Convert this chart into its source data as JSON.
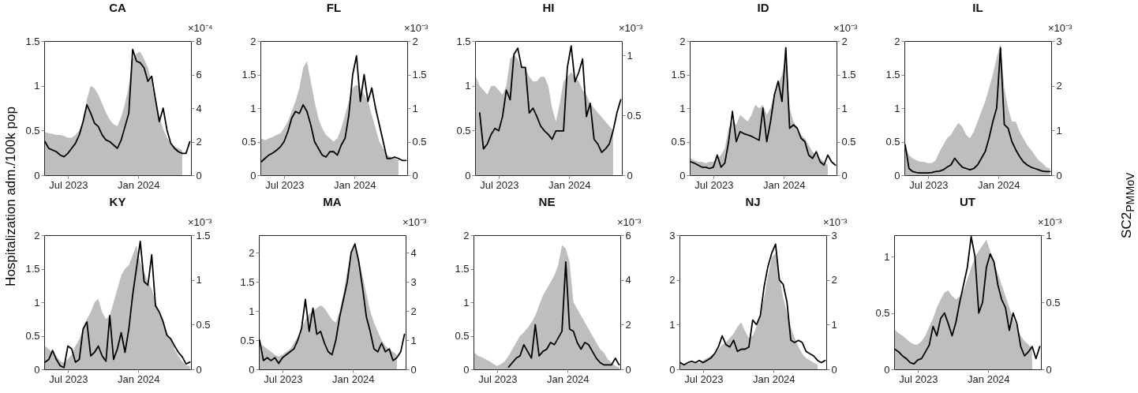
{
  "chart_data": [
    {
      "type": "area",
      "title": "CA",
      "x": [
        "2023-05-01",
        "2023-05-11",
        "2023-05-21",
        "2023-05-31",
        "2023-06-10",
        "2023-06-20",
        "2023-06-30",
        "2023-07-10",
        "2023-07-20",
        "2023-07-30",
        "2023-08-09",
        "2023-08-19",
        "2023-08-29",
        "2023-09-08",
        "2023-09-18",
        "2023-09-28",
        "2023-10-08",
        "2023-10-18",
        "2023-10-28",
        "2023-11-07",
        "2023-11-17",
        "2023-11-27",
        "2023-12-07",
        "2023-12-17",
        "2023-12-27",
        "2024-01-06",
        "2024-01-16",
        "2024-01-26",
        "2024-02-05",
        "2024-02-15",
        "2024-02-25",
        "2024-03-06",
        "2024-03-16",
        "2024-03-26",
        "2024-04-05",
        "2024-04-15",
        "2024-04-25",
        "2024-05-05",
        "2024-05-15"
      ],
      "xlim": [
        "2023-04-29",
        "2024-05-18"
      ],
      "xticks": [
        {
          "value": "2023-07-01",
          "label": "Jul 2023"
        },
        {
          "value": "2024-01-01",
          "label": "Jan 2024"
        }
      ],
      "ylim": [
        0,
        1.5
      ],
      "yticks": [
        0,
        0.5,
        1,
        1.5
      ],
      "y2lim": [
        0,
        8
      ],
      "y2ticks": [
        0,
        2,
        4,
        6,
        8
      ],
      "annotations": [
        "×10⁻⁴"
      ],
      "series": [
        {
          "color": "#bebebe",
          "values": [
            0.48,
            0.47,
            0.46,
            0.45,
            0.45,
            0.44,
            0.42,
            0.42,
            0.45,
            0.5,
            0.6,
            0.85,
            1.0,
            0.97,
            0.9,
            0.8,
            0.7,
            0.62,
            0.57,
            0.55,
            0.65,
            0.8,
            1.0,
            1.3,
            1.36,
            1.38,
            1.3,
            1.2,
            1.05,
            0.8,
            0.65,
            0.52,
            0.42,
            0.36,
            0.32,
            0.3,
            0.28,
            null,
            null
          ]
        },
        {
          "type": "line",
          "axis": "y2",
          "color": "#000000",
          "values": [
            2.0,
            1.6,
            1.5,
            1.4,
            1.2,
            1.1,
            1.3,
            1.6,
            1.9,
            2.4,
            3.2,
            4.2,
            3.7,
            3.1,
            2.9,
            2.4,
            2.1,
            2.0,
            1.8,
            1.6,
            2.1,
            2.9,
            3.7,
            7.5,
            6.8,
            6.7,
            6.4,
            5.6,
            5.9,
            4.5,
            3.2,
            4.0,
            2.7,
            1.9,
            1.6,
            1.4,
            1.3,
            1.3,
            2.0
          ]
        }
      ]
    },
    {
      "type": "area",
      "title": "FL",
      "x": [
        "2023-05-01",
        "2023-05-11",
        "2023-05-21",
        "2023-05-31",
        "2023-06-10",
        "2023-06-20",
        "2023-06-30",
        "2023-07-10",
        "2023-07-20",
        "2023-07-30",
        "2023-08-09",
        "2023-08-19",
        "2023-08-29",
        "2023-09-08",
        "2023-09-18",
        "2023-09-28",
        "2023-10-08",
        "2023-10-18",
        "2023-10-28",
        "2023-11-07",
        "2023-11-17",
        "2023-11-27",
        "2023-12-07",
        "2023-12-17",
        "2023-12-27",
        "2024-01-06",
        "2024-01-16",
        "2024-01-26",
        "2024-02-05",
        "2024-02-15",
        "2024-02-25",
        "2024-03-06",
        "2024-03-16",
        "2024-03-26",
        "2024-04-05",
        "2024-04-15",
        "2024-04-25",
        "2024-05-05",
        "2024-05-15"
      ],
      "xlim": [
        "2023-04-29",
        "2024-05-18"
      ],
      "xticks": [
        {
          "value": "2023-07-01",
          "label": "Jul 2023"
        },
        {
          "value": "2024-01-01",
          "label": "Jan 2024"
        }
      ],
      "ylim": [
        0,
        2
      ],
      "yticks": [
        0,
        0.5,
        1,
        1.5,
        2
      ],
      "y2lim": [
        0,
        2
      ],
      "y2ticks": [
        0,
        0.5,
        1,
        1.5,
        2
      ],
      "annotations": [
        "×10⁻³"
      ],
      "series": [
        {
          "color": "#bebebe",
          "values": [
            0.55,
            0.52,
            0.55,
            0.57,
            0.6,
            0.62,
            0.7,
            0.8,
            0.95,
            1.1,
            1.3,
            1.6,
            1.7,
            1.4,
            1.1,
            0.85,
            0.7,
            0.6,
            0.55,
            0.5,
            0.55,
            0.7,
            0.9,
            1.1,
            1.3,
            1.35,
            1.3,
            1.2,
            1.1,
            0.9,
            0.7,
            0.5,
            0.4,
            0.3,
            0.27,
            0.25,
            0.22,
            null,
            null
          ]
        },
        {
          "type": "line",
          "axis": "y2",
          "color": "#000000",
          "values": [
            0.2,
            0.25,
            0.3,
            0.33,
            0.37,
            0.42,
            0.5,
            0.65,
            0.85,
            0.95,
            0.92,
            1.05,
            0.95,
            0.75,
            0.5,
            0.4,
            0.3,
            0.27,
            0.35,
            0.35,
            0.3,
            0.45,
            0.55,
            0.9,
            1.5,
            1.78,
            1.1,
            1.5,
            1.1,
            1.3,
            1.0,
            0.75,
            0.5,
            0.25,
            0.25,
            0.27,
            0.25,
            0.22,
            0.22
          ]
        }
      ]
    },
    {
      "type": "area",
      "title": "HI",
      "x": [
        "2023-05-01",
        "2023-05-11",
        "2023-05-21",
        "2023-05-31",
        "2023-06-10",
        "2023-06-20",
        "2023-06-30",
        "2023-07-10",
        "2023-07-20",
        "2023-07-30",
        "2023-08-09",
        "2023-08-19",
        "2023-08-29",
        "2023-09-08",
        "2023-09-18",
        "2023-09-28",
        "2023-10-08",
        "2023-10-18",
        "2023-10-28",
        "2023-11-07",
        "2023-11-17",
        "2023-11-27",
        "2023-12-07",
        "2023-12-17",
        "2023-12-27",
        "2024-01-06",
        "2024-01-16",
        "2024-01-26",
        "2024-02-05",
        "2024-02-15",
        "2024-02-25",
        "2024-03-06",
        "2024-03-16",
        "2024-03-26",
        "2024-04-05",
        "2024-04-15",
        "2024-04-25",
        "2024-05-05",
        "2024-05-15"
      ],
      "xlim": [
        "2023-04-29",
        "2024-05-18"
      ],
      "xticks": [
        {
          "value": "2023-07-01",
          "label": "Jul 2023"
        },
        {
          "value": "2024-01-01",
          "label": "Jan 2024"
        }
      ],
      "ylim": [
        0,
        1.5
      ],
      "yticks": [
        0,
        0.5,
        1,
        1.5
      ],
      "y2lim": [
        0,
        1.12
      ],
      "y2ticks": [
        0,
        0.5,
        1
      ],
      "annotations": [
        "×10⁻³"
      ],
      "series": [
        {
          "color": "#bebebe",
          "values": [
            1.1,
            1.0,
            0.95,
            0.9,
            1.0,
            1.0,
            0.95,
            0.9,
            1.0,
            1.3,
            1.35,
            1.3,
            1.2,
            1.2,
            1.1,
            1.05,
            1.05,
            1.1,
            1.1,
            1.0,
            0.75,
            0.6,
            0.8,
            1.05,
            1.1,
            1.15,
            1.1,
            1.05,
            0.95,
            0.9,
            0.8,
            0.75,
            0.7,
            0.65,
            0.6,
            0.55,
            0.5,
            null,
            null
          ]
        },
        {
          "type": "line",
          "axis": "y2",
          "color": "#000000",
          "values": [
            null,
            0.52,
            0.22,
            0.26,
            0.34,
            0.39,
            0.37,
            0.49,
            0.71,
            0.63,
            1.01,
            1.06,
            0.9,
            0.9,
            0.52,
            0.56,
            0.49,
            0.41,
            0.37,
            0.34,
            0.3,
            0.37,
            0.37,
            0.37,
            0.9,
            1.08,
            0.78,
            0.86,
            0.97,
            0.49,
            0.6,
            0.3,
            0.26,
            0.19,
            0.22,
            0.26,
            0.37,
            0.52,
            0.63
          ]
        }
      ]
    },
    {
      "type": "area",
      "title": "ID",
      "x": [
        "2023-05-01",
        "2023-05-11",
        "2023-05-21",
        "2023-05-31",
        "2023-06-10",
        "2023-06-20",
        "2023-06-30",
        "2023-07-10",
        "2023-07-20",
        "2023-07-30",
        "2023-08-09",
        "2023-08-19",
        "2023-08-29",
        "2023-09-08",
        "2023-09-18",
        "2023-09-28",
        "2023-10-08",
        "2023-10-18",
        "2023-10-28",
        "2023-11-07",
        "2023-11-17",
        "2023-11-27",
        "2023-12-07",
        "2023-12-17",
        "2023-12-27",
        "2024-01-06",
        "2024-01-16",
        "2024-01-26",
        "2024-02-05",
        "2024-02-15",
        "2024-02-25",
        "2024-03-06",
        "2024-03-16",
        "2024-03-26",
        "2024-04-05",
        "2024-04-15",
        "2024-04-25",
        "2024-05-05",
        "2024-05-15"
      ],
      "xlim": [
        "2023-04-29",
        "2024-05-18"
      ],
      "xticks": [
        {
          "value": "2023-07-01",
          "label": "Jul 2023"
        },
        {
          "value": "2024-01-01",
          "label": "Jan 2024"
        }
      ],
      "ylim": [
        0,
        2
      ],
      "yticks": [
        0,
        0.5,
        1,
        1.5,
        2
      ],
      "y2lim": [
        0,
        2
      ],
      "y2ticks": [
        0,
        0.5,
        1,
        1.5,
        2
      ],
      "annotations": [
        "×10⁻³"
      ],
      "series": [
        {
          "color": "#bebebe",
          "values": [
            0.25,
            0.22,
            0.2,
            0.2,
            0.18,
            0.2,
            0.2,
            0.25,
            0.3,
            0.4,
            0.7,
            0.8,
            0.75,
            0.9,
            0.85,
            0.8,
            0.9,
            1.05,
            1.0,
            1.05,
            0.9,
            1.0,
            1.2,
            1.35,
            1.5,
            1.75,
            1.0,
            0.8,
            0.7,
            0.6,
            0.55,
            0.45,
            0.35,
            0.3,
            0.25,
            0.2,
            0.15,
            null,
            null
          ]
        },
        {
          "type": "line",
          "axis": "y2",
          "color": "#000000",
          "values": [
            0.2,
            0.18,
            0.15,
            0.12,
            0.12,
            0.1,
            0.12,
            0.3,
            0.12,
            0.18,
            0.5,
            0.95,
            0.5,
            0.65,
            0.62,
            0.6,
            0.58,
            0.55,
            0.52,
            1.0,
            0.5,
            0.8,
            1.2,
            1.4,
            1.1,
            1.9,
            0.7,
            0.75,
            0.7,
            0.55,
            0.5,
            0.3,
            0.25,
            0.35,
            0.2,
            0.15,
            0.3,
            0.2,
            0.15
          ]
        }
      ]
    },
    {
      "type": "area",
      "title": "IL",
      "x": [
        "2023-05-01",
        "2023-05-11",
        "2023-05-21",
        "2023-05-31",
        "2023-06-10",
        "2023-06-20",
        "2023-06-30",
        "2023-07-10",
        "2023-07-20",
        "2023-07-30",
        "2023-08-09",
        "2023-08-19",
        "2023-08-29",
        "2023-09-08",
        "2023-09-18",
        "2023-09-28",
        "2023-10-08",
        "2023-10-18",
        "2023-10-28",
        "2023-11-07",
        "2023-11-17",
        "2023-11-27",
        "2023-12-07",
        "2023-12-17",
        "2023-12-27",
        "2024-01-06",
        "2024-01-16",
        "2024-01-26",
        "2024-02-05",
        "2024-02-15",
        "2024-02-25",
        "2024-03-06",
        "2024-03-16",
        "2024-03-26",
        "2024-04-05",
        "2024-04-15",
        "2024-04-25",
        "2024-05-05",
        "2024-05-15"
      ],
      "xlim": [
        "2023-04-29",
        "2024-05-18"
      ],
      "xticks": [
        {
          "value": "2023-07-01",
          "label": "Jul 2023"
        },
        {
          "value": "2024-01-01",
          "label": "Jan 2024"
        }
      ],
      "ylim": [
        0,
        2
      ],
      "yticks": [
        0,
        0.5,
        1,
        1.5,
        2
      ],
      "y2lim": [
        0,
        3
      ],
      "y2ticks": [
        0,
        1,
        2,
        3
      ],
      "annotations": [
        "×10⁻³"
      ],
      "series": [
        {
          "color": "#bebebe",
          "values": [
            0.45,
            0.3,
            0.25,
            0.22,
            0.2,
            0.2,
            0.18,
            0.18,
            0.22,
            0.35,
            0.45,
            0.55,
            0.6,
            0.7,
            0.78,
            0.72,
            0.6,
            0.55,
            0.65,
            0.8,
            0.95,
            1.1,
            1.3,
            1.5,
            1.75,
            1.95,
            1.3,
            1.0,
            0.8,
            0.8,
            0.65,
            0.55,
            0.45,
            0.38,
            0.3,
            0.22,
            0.18,
            0.12,
            0.1
          ]
        },
        {
          "type": "line",
          "axis": "y2",
          "color": "#000000",
          "values": [
            0.68,
            0.15,
            0.08,
            0.06,
            0.05,
            0.05,
            0.05,
            0.06,
            0.08,
            0.09,
            0.12,
            0.18,
            0.23,
            0.38,
            0.27,
            0.18,
            0.15,
            0.12,
            0.15,
            0.23,
            0.38,
            0.53,
            0.83,
            1.2,
            1.5,
            2.85,
            1.13,
            1.05,
            0.75,
            0.57,
            0.42,
            0.3,
            0.23,
            0.18,
            0.15,
            0.12,
            0.09,
            0.08,
            0.08
          ]
        }
      ]
    },
    {
      "type": "area",
      "title": "KY",
      "ylabel": "Hospitalization adm./100k pop",
      "x": [
        "2023-05-01",
        "2023-05-11",
        "2023-05-21",
        "2023-05-31",
        "2023-06-10",
        "2023-06-20",
        "2023-06-30",
        "2023-07-10",
        "2023-07-20",
        "2023-07-30",
        "2023-08-09",
        "2023-08-19",
        "2023-08-29",
        "2023-09-08",
        "2023-09-18",
        "2023-09-28",
        "2023-10-08",
        "2023-10-18",
        "2023-10-28",
        "2023-11-07",
        "2023-11-17",
        "2023-11-27",
        "2023-12-07",
        "2023-12-17",
        "2023-12-27",
        "2024-01-06",
        "2024-01-16",
        "2024-01-26",
        "2024-02-05",
        "2024-02-15",
        "2024-02-25",
        "2024-03-06",
        "2024-03-16",
        "2024-03-26",
        "2024-04-05",
        "2024-04-15",
        "2024-04-25",
        "2024-05-05",
        "2024-05-15"
      ],
      "xlim": [
        "2023-04-29",
        "2024-05-18"
      ],
      "xticks": [
        {
          "value": "2023-07-01",
          "label": "Jul 2023"
        },
        {
          "value": "2024-01-01",
          "label": "Jan 2024"
        }
      ],
      "ylim": [
        0,
        2
      ],
      "yticks": [
        0,
        0.5,
        1,
        1.5,
        2
      ],
      "y2lim": [
        0,
        1.5
      ],
      "y2ticks": [
        0,
        0.5,
        1,
        1.5
      ],
      "annotations": [
        "×10⁻³"
      ],
      "series": [
        {
          "color": "#bebebe",
          "values": [
            0.35,
            0.3,
            0.25,
            0.2,
            0.12,
            0.1,
            0.15,
            0.22,
            0.35,
            0.45,
            0.6,
            0.75,
            0.85,
            1.0,
            1.05,
            0.85,
            0.75,
            0.8,
            1.0,
            1.2,
            1.4,
            1.5,
            1.55,
            1.7,
            1.85,
            1.6,
            1.45,
            1.3,
            1.2,
            1.0,
            0.85,
            0.7,
            0.55,
            0.45,
            0.3,
            0.2,
            0.12,
            0.06,
            0.05
          ]
        },
        {
          "type": "line",
          "axis": "y2",
          "color": "#000000",
          "values": [
            0.08,
            0.11,
            0.21,
            0.11,
            0.04,
            0.02,
            0.26,
            0.23,
            0.08,
            0.11,
            0.45,
            0.53,
            0.15,
            0.19,
            0.26,
            0.15,
            0.09,
            0.6,
            0.11,
            0.23,
            0.41,
            0.19,
            0.45,
            0.83,
            1.13,
            1.43,
            0.98,
            0.94,
            1.28,
            0.71,
            0.64,
            0.53,
            0.38,
            0.34,
            0.26,
            0.19,
            0.14,
            0.06,
            0.08
          ]
        }
      ]
    },
    {
      "type": "area",
      "title": "MA",
      "x": [
        "2023-05-01",
        "2023-05-11",
        "2023-05-21",
        "2023-05-31",
        "2023-06-10",
        "2023-06-20",
        "2023-06-30",
        "2023-07-10",
        "2023-07-20",
        "2023-07-30",
        "2023-08-09",
        "2023-08-19",
        "2023-08-29",
        "2023-09-08",
        "2023-09-18",
        "2023-09-28",
        "2023-10-08",
        "2023-10-18",
        "2023-10-28",
        "2023-11-07",
        "2023-11-17",
        "2023-11-27",
        "2023-12-07",
        "2023-12-17",
        "2023-12-27",
        "2024-01-06",
        "2024-01-16",
        "2024-01-26",
        "2024-02-05",
        "2024-02-15",
        "2024-02-25",
        "2024-03-06",
        "2024-03-16",
        "2024-03-26",
        "2024-04-05",
        "2024-04-15",
        "2024-04-25",
        "2024-05-05",
        "2024-05-15"
      ],
      "xlim": [
        "2023-04-29",
        "2024-05-18"
      ],
      "xticks": [
        {
          "value": "2023-07-01",
          "label": "Jul 2023"
        },
        {
          "value": "2024-01-01",
          "label": "Jan 2024"
        }
      ],
      "ylim": [
        0,
        2.3
      ],
      "yticks": [
        0,
        0.5,
        1,
        1.5,
        2
      ],
      "y2lim": [
        0,
        4.6
      ],
      "y2ticks": [
        0,
        1,
        2,
        3,
        4
      ],
      "annotations": [
        "×10⁻³"
      ],
      "series": [
        {
          "color": "#bebebe",
          "values": [
            0.45,
            0.4,
            0.35,
            0.3,
            0.25,
            0.22,
            0.25,
            0.3,
            0.35,
            0.45,
            0.55,
            0.7,
            0.85,
            0.95,
            1.0,
            1.05,
            1.1,
            1.05,
            0.95,
            0.85,
            0.8,
            1.0,
            1.3,
            1.7,
            2.0,
            2.1,
            1.9,
            1.6,
            1.3,
            1.0,
            0.8,
            0.65,
            0.5,
            0.4,
            0.35,
            0.3,
            0.25,
            null,
            null
          ]
        },
        {
          "type": "line",
          "axis": "y2",
          "color": "#000000",
          "values": [
            1.0,
            0.3,
            0.4,
            0.3,
            0.4,
            0.2,
            0.4,
            0.5,
            0.6,
            0.7,
            1.0,
            1.4,
            2.4,
            1.3,
            2.1,
            1.2,
            1.3,
            0.9,
            0.6,
            0.5,
            1.0,
            1.8,
            2.4,
            3.0,
            4.0,
            4.3,
            3.7,
            2.8,
            1.8,
            1.3,
            0.7,
            0.6,
            0.9,
            0.6,
            0.7,
            0.3,
            0.4,
            0.6,
            1.2
          ]
        }
      ]
    },
    {
      "type": "area",
      "title": "NE",
      "x": [
        "2023-05-01",
        "2023-05-11",
        "2023-05-21",
        "2023-05-31",
        "2023-06-10",
        "2023-06-20",
        "2023-06-30",
        "2023-07-10",
        "2023-07-20",
        "2023-07-30",
        "2023-08-09",
        "2023-08-19",
        "2023-08-29",
        "2023-09-08",
        "2023-09-18",
        "2023-09-28",
        "2023-10-08",
        "2023-10-18",
        "2023-10-28",
        "2023-11-07",
        "2023-11-17",
        "2023-11-27",
        "2023-12-07",
        "2023-12-17",
        "2023-12-27",
        "2024-01-06",
        "2024-01-16",
        "2024-01-26",
        "2024-02-05",
        "2024-02-15",
        "2024-02-25",
        "2024-03-06",
        "2024-03-16",
        "2024-03-26",
        "2024-04-05",
        "2024-04-15",
        "2024-04-25",
        "2024-05-05",
        "2024-05-15"
      ],
      "xlim": [
        "2023-04-29",
        "2024-05-18"
      ],
      "xticks": [
        {
          "value": "2023-07-01",
          "label": "Jul 2023"
        },
        {
          "value": "2024-01-01",
          "label": "Jan 2024"
        }
      ],
      "ylim": [
        0,
        2
      ],
      "yticks": [
        0,
        0.5,
        1,
        1.5,
        2
      ],
      "y2lim": [
        0,
        6
      ],
      "y2ticks": [
        0,
        2,
        4,
        6
      ],
      "annotations": [
        "×10⁻³"
      ],
      "series": [
        {
          "color": "#bebebe",
          "values": [
            0.25,
            0.2,
            0.18,
            0.15,
            0.12,
            0.08,
            0.05,
            0.08,
            0.12,
            0.2,
            0.3,
            0.4,
            0.5,
            0.55,
            0.62,
            0.7,
            0.8,
            0.95,
            1.1,
            1.2,
            1.3,
            1.4,
            1.55,
            1.85,
            1.8,
            1.6,
            1.0,
            0.9,
            0.8,
            0.7,
            0.6,
            0.5,
            0.4,
            0.3,
            0.25,
            0.15,
            0.1,
            0.05,
            0.03
          ]
        },
        {
          "type": "line",
          "axis": "y2",
          "color": "#000000",
          "values": [
            null,
            null,
            null,
            null,
            null,
            null,
            null,
            null,
            null,
            0.1,
            0.3,
            0.5,
            0.6,
            1.1,
            0.8,
            0.5,
            2.0,
            0.6,
            0.8,
            0.9,
            1.2,
            1.1,
            1.4,
            1.7,
            4.8,
            1.8,
            1.7,
            1.2,
            0.9,
            1.2,
            1.1,
            0.8,
            0.5,
            0.3,
            0.2,
            0.2,
            0.2,
            0.5,
            0.2
          ]
        }
      ]
    },
    {
      "type": "area",
      "title": "NJ",
      "x": [
        "2023-05-01",
        "2023-05-11",
        "2023-05-21",
        "2023-05-31",
        "2023-06-10",
        "2023-06-20",
        "2023-06-30",
        "2023-07-10",
        "2023-07-20",
        "2023-07-30",
        "2023-08-09",
        "2023-08-19",
        "2023-08-29",
        "2023-09-08",
        "2023-09-18",
        "2023-09-28",
        "2023-10-08",
        "2023-10-18",
        "2023-10-28",
        "2023-11-07",
        "2023-11-17",
        "2023-11-27",
        "2023-12-07",
        "2023-12-17",
        "2023-12-27",
        "2024-01-06",
        "2024-01-16",
        "2024-01-26",
        "2024-02-05",
        "2024-02-15",
        "2024-02-25",
        "2024-03-06",
        "2024-03-16",
        "2024-03-26",
        "2024-04-05",
        "2024-04-15",
        "2024-04-25",
        "2024-05-05",
        "2024-05-15"
      ],
      "xlim": [
        "2023-04-29",
        "2024-05-18"
      ],
      "xticks": [
        {
          "value": "2023-07-01",
          "label": "Jul 2023"
        },
        {
          "value": "2024-01-01",
          "label": "Jan 2024"
        }
      ],
      "ylim": [
        0,
        3
      ],
      "yticks": [
        0,
        1,
        2,
        3
      ],
      "y2lim": [
        0,
        3
      ],
      "y2ticks": [
        0,
        1,
        2,
        3
      ],
      "annotations": [
        "×10⁻³"
      ],
      "series": [
        {
          "color": "#bebebe",
          "values": [
            0.15,
            0.12,
            0.12,
            0.15,
            0.15,
            0.15,
            0.2,
            0.25,
            0.3,
            0.35,
            0.45,
            0.55,
            0.6,
            0.7,
            0.8,
            0.95,
            1.05,
            0.85,
            0.7,
            0.75,
            0.95,
            1.2,
            1.6,
            2.1,
            2.5,
            2.6,
            2.1,
            1.6,
            1.25,
            0.95,
            0.7,
            0.5,
            0.35,
            0.25,
            0.2,
            0.15,
            0.1,
            null,
            null
          ]
        },
        {
          "type": "line",
          "axis": "y2",
          "color": "#000000",
          "values": [
            0.15,
            0.1,
            0.15,
            0.18,
            0.15,
            0.2,
            0.15,
            0.2,
            0.25,
            0.35,
            0.5,
            0.75,
            0.55,
            0.5,
            0.65,
            0.4,
            0.45,
            0.45,
            0.5,
            1.1,
            1.0,
            1.2,
            1.85,
            2.3,
            2.6,
            2.8,
            2.0,
            1.9,
            1.5,
            0.65,
            0.6,
            0.65,
            0.6,
            0.4,
            0.35,
            0.3,
            0.2,
            0.15,
            0.2
          ]
        }
      ]
    },
    {
      "type": "area",
      "title": "UT",
      "y2label": "SC2$_{PMMoV}$",
      "x": [
        "2023-05-01",
        "2023-05-11",
        "2023-05-21",
        "2023-05-31",
        "2023-06-10",
        "2023-06-20",
        "2023-06-30",
        "2023-07-10",
        "2023-07-20",
        "2023-07-30",
        "2023-08-09",
        "2023-08-19",
        "2023-08-29",
        "2023-09-08",
        "2023-09-18",
        "2023-09-28",
        "2023-10-08",
        "2023-10-18",
        "2023-10-28",
        "2023-11-07",
        "2023-11-17",
        "2023-11-27",
        "2023-12-07",
        "2023-12-17",
        "2023-12-27",
        "2024-01-06",
        "2024-01-16",
        "2024-01-26",
        "2024-02-05",
        "2024-02-15",
        "2024-02-25",
        "2024-03-06",
        "2024-03-16",
        "2024-03-26",
        "2024-04-05",
        "2024-04-15",
        "2024-04-25",
        "2024-05-05",
        "2024-05-15"
      ],
      "xlim": [
        "2023-04-29",
        "2024-05-18"
      ],
      "xticks": [
        {
          "value": "2023-07-01",
          "label": "Jul 2023"
        },
        {
          "value": "2024-01-01",
          "label": "Jan 2024"
        }
      ],
      "ylim": [
        0,
        1.19
      ],
      "yticks": [
        0,
        0.5,
        1
      ],
      "y2lim": [
        0,
        1
      ],
      "y2ticks": [
        0,
        0.5,
        1
      ],
      "annotations": [
        "×10⁻³"
      ],
      "series": [
        {
          "color": "#bebebe",
          "values": [
            0.35,
            0.32,
            0.3,
            0.27,
            0.24,
            0.22,
            0.22,
            0.25,
            0.3,
            0.38,
            0.45,
            0.55,
            0.62,
            0.68,
            0.7,
            0.65,
            0.62,
            0.65,
            0.7,
            0.8,
            0.9,
            1.0,
            1.05,
            1.1,
            1.15,
            1.05,
            0.95,
            0.85,
            0.75,
            0.65,
            0.55,
            0.45,
            0.38,
            0.3,
            0.25,
            0.22,
            0.18,
            null,
            null
          ]
        },
        {
          "type": "line",
          "axis": "y2",
          "color": "#000000",
          "values": [
            0.15,
            0.13,
            0.1,
            0.08,
            0.05,
            0.04,
            0.07,
            0.08,
            0.13,
            0.18,
            0.32,
            0.25,
            0.38,
            0.42,
            0.34,
            0.25,
            0.35,
            0.5,
            0.63,
            0.76,
            0.99,
            0.84,
            0.42,
            0.5,
            0.76,
            0.86,
            0.8,
            0.63,
            0.52,
            0.46,
            0.29,
            0.42,
            0.34,
            0.17,
            0.1,
            0.13,
            0.17,
            0.08,
            0.17
          ]
        }
      ]
    }
  ]
}
